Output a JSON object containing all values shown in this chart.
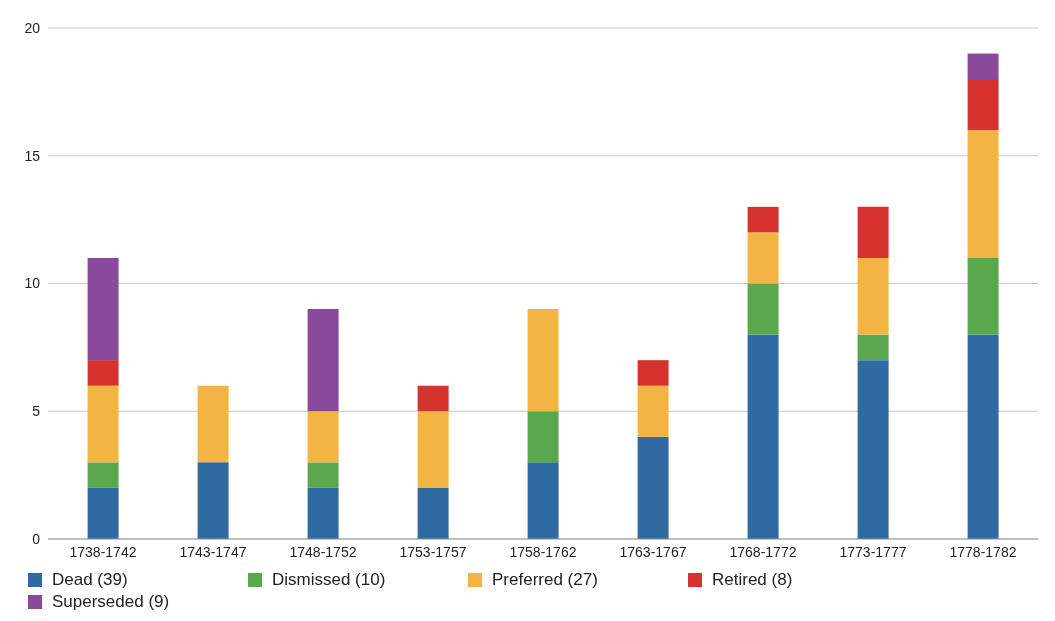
{
  "chart_data": {
    "type": "bar",
    "stacked": true,
    "categories": [
      "1738-1742",
      "1743-1747",
      "1748-1752",
      "1753-1757",
      "1758-1762",
      "1763-1767",
      "1768-1772",
      "1773-1777",
      "1778-1782"
    ],
    "series": [
      {
        "name": "Dead (39)",
        "color": "#2f6aa3",
        "values": [
          2,
          3,
          2,
          2,
          3,
          4,
          8,
          7,
          8
        ]
      },
      {
        "name": "Dismissed (10)",
        "color": "#5aa84e",
        "values": [
          1,
          0,
          1,
          0,
          2,
          0,
          2,
          1,
          3
        ]
      },
      {
        "name": "Preferred (27)",
        "color": "#f2b541",
        "values": [
          3,
          3,
          2,
          3,
          4,
          2,
          2,
          3,
          5
        ]
      },
      {
        "name": "Retired (8)",
        "color": "#d6332f",
        "values": [
          1,
          0,
          0,
          1,
          0,
          1,
          1,
          2,
          2
        ]
      },
      {
        "name": "Superseded (9)",
        "color": "#8a4a9b",
        "values": [
          4,
          0,
          4,
          0,
          0,
          0,
          0,
          0,
          1
        ]
      }
    ],
    "ylim": [
      0,
      20
    ],
    "yticks": [
      0,
      5,
      10,
      15,
      20
    ],
    "grid": "y",
    "legend": "bottom"
  }
}
